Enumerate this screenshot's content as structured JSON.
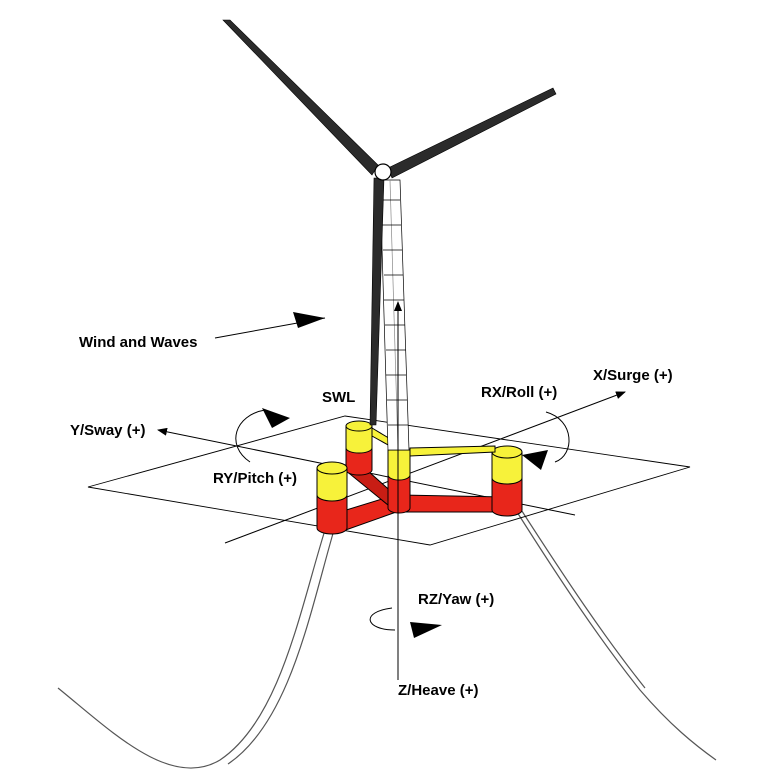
{
  "labels": {
    "wind_waves": "Wind and Waves",
    "swl": "SWL",
    "x_surge": "X/Surge (+)",
    "y_sway": "Y/Sway (+)",
    "rx_roll": "RX/Roll (+)",
    "ry_pitch": "RY/Pitch (+)",
    "rz_yaw": "RZ/Yaw (+)",
    "z_heave": "Z/Heave (+)"
  },
  "colors": {
    "platform_red": "#e8261b",
    "column_yellow": "#f7f23a",
    "outline": "#000000",
    "blade": "#2b2b2b"
  }
}
